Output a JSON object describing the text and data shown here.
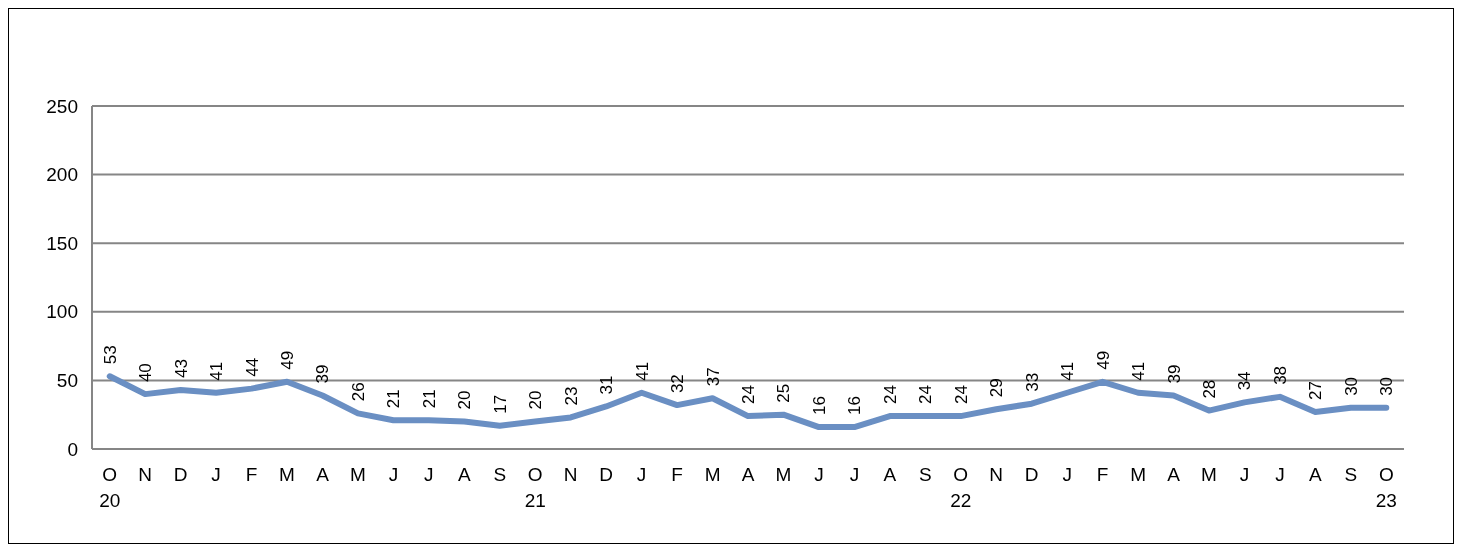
{
  "chart_data": {
    "type": "line",
    "categories": [
      "O\n20",
      "N",
      "D",
      "J",
      "F",
      "M",
      "A",
      "M",
      "J",
      "J",
      "A",
      "S",
      "O\n21",
      "N",
      "D",
      "J",
      "F",
      "M",
      "A",
      "M",
      "J",
      "J",
      "A",
      "S",
      "O\n22",
      "N",
      "D",
      "J",
      "F",
      "M",
      "A",
      "M",
      "J",
      "J",
      "A",
      "S",
      "O\n23"
    ],
    "series": [
      {
        "color": "#6a8fc3",
        "values": [
          53,
          40,
          43,
          41,
          44,
          49,
          39,
          26,
          21,
          21,
          20,
          17,
          20,
          23,
          31,
          41,
          32,
          37,
          24,
          25,
          16,
          16,
          24,
          24,
          24,
          29,
          33,
          41,
          49,
          41,
          39,
          28,
          34,
          38,
          27,
          30,
          30
        ]
      }
    ],
    "ylim": [
      0,
      250
    ],
    "yticks": [
      0,
      50,
      100,
      150,
      200,
      250
    ],
    "grid": "y",
    "data_labels": true,
    "marker": "none",
    "line_style": "solid"
  }
}
